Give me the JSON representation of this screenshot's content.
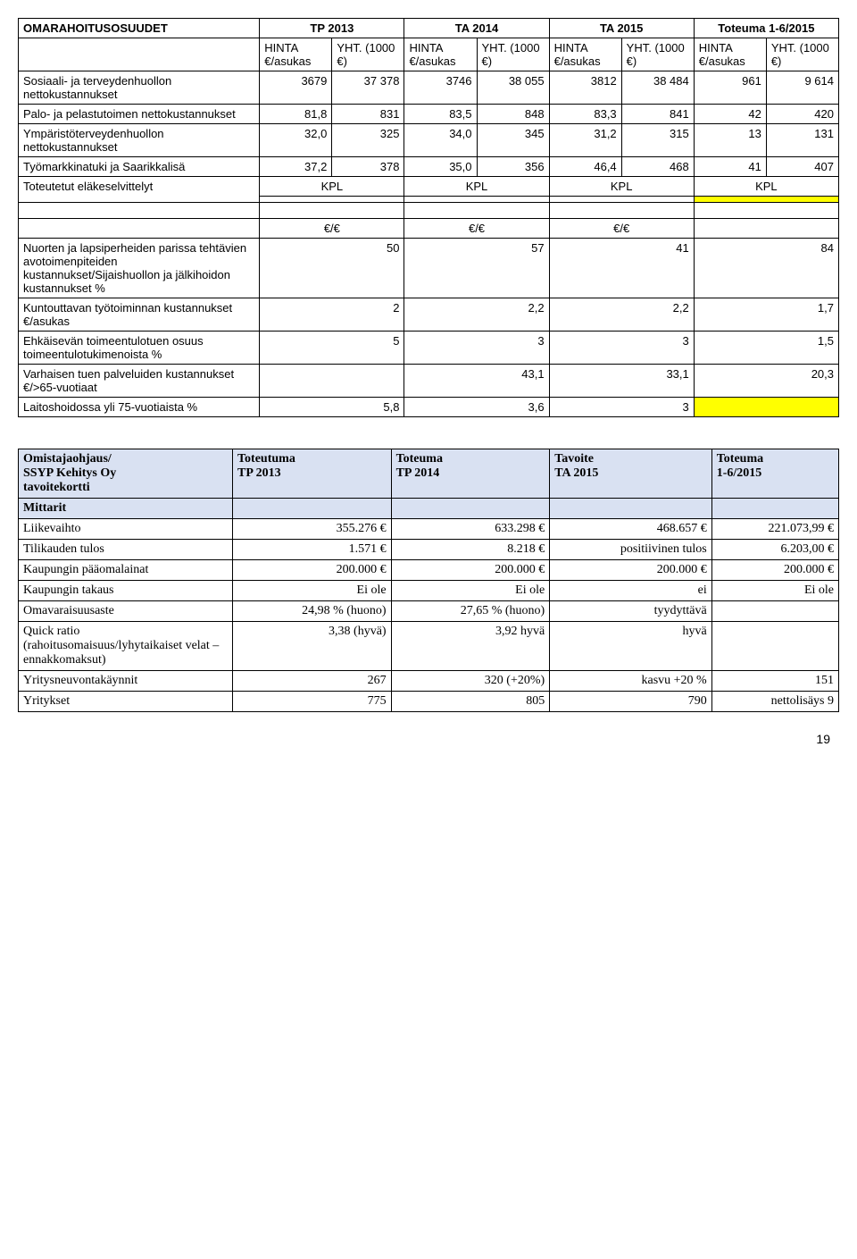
{
  "table1": {
    "title": "OMARAHOITUSOSUUDET",
    "periods": [
      "TP 2013",
      "TA 2014",
      "TA 2015",
      "Toteuma 1-6/2015"
    ],
    "subheaders": {
      "h1": "HINTA €/asukas",
      "h2": "YHT. (1000 €)",
      "h3": "HINTA €/asukas",
      "h4": "YHT. (1000 €)",
      "h5": "HINTA €/asukas",
      "h6": "YHT. (1000 €)",
      "h7": "HINTA €/asukas",
      "h8": "YHT. (1000 €)"
    },
    "rows": [
      {
        "label": "Sosiaali- ja terveydenhuollon nettokustannukset",
        "v": [
          "3679",
          "37 378",
          "3746",
          "38 055",
          "3812",
          "38 484",
          "961",
          "9 614"
        ]
      },
      {
        "label": "Palo- ja pelastutoimen nettokustannukset",
        "v": [
          "81,8",
          "831",
          "83,5",
          "848",
          "83,3",
          "841",
          "42",
          "420"
        ]
      },
      {
        "label": "Ympäristöterveydenhuollon nettokustannukset",
        "v": [
          "32,0",
          "325",
          "34,0",
          "345",
          "31,2",
          "315",
          "13",
          "131"
        ]
      },
      {
        "label": "Työmarkkinatuki ja Saarikkalisä",
        "v": [
          "37,2",
          "378",
          "35,0",
          "356",
          "46,4",
          "468",
          "41",
          "407"
        ]
      }
    ],
    "kpl_row": {
      "label": "Toteutetut eläkeselvittelyt",
      "kpl": "KPL"
    },
    "euro_header": "€/€",
    "rows2": [
      {
        "label": "Nuorten ja lapsiperheiden parissa tehtävien avotoimenpiteiden kustannukset/Sijaishuollon ja jälkihoidon kustannukset %",
        "v": [
          "50",
          "57",
          "41",
          "84"
        ]
      },
      {
        "label": "Kuntouttavan työtoiminnan kustannukset €/asukas",
        "v": [
          "2",
          "2,2",
          "2,2",
          "1,7"
        ]
      },
      {
        "label": "Ehkäisevän toimeentulotuen osuus toimeentulotukimenoista %",
        "v": [
          "5",
          "3",
          "3",
          "1,5"
        ]
      },
      {
        "label": "Varhaisen tuen palveluiden kustannukset €/>65-vuotiaat",
        "v": [
          "",
          "43,1",
          "33,1",
          "20,3"
        ]
      },
      {
        "label": "Laitoshoidossa yli 75-vuotiaista %",
        "v": [
          "5,8",
          "3,6",
          "3",
          ""
        ],
        "yellowLast": true
      }
    ]
  },
  "table2": {
    "header": {
      "c1a": "Omistajaohjaus/",
      "c1b": "SSYP Kehitys Oy",
      "c1c": "tavoitekortti",
      "c2a": "Toteutuma",
      "c2b": "TP 2013",
      "c3a": "Toteuma",
      "c3b": "TP 2014",
      "c4a": "Tavoite",
      "c4b": "TA 2015",
      "c5a": "Toteuma",
      "c5b": "1-6/2015"
    },
    "mittarit": "Mittarit",
    "rows": [
      {
        "label": "Liikevaihto",
        "v": [
          "355.276 €",
          "633.298 €",
          "468.657 €",
          "221.073,99 €"
        ]
      },
      {
        "label": "Tilikauden tulos",
        "v": [
          "1.571 €",
          "8.218 €",
          "positiivinen tulos",
          "6.203,00 €"
        ]
      },
      {
        "label": "Kaupungin pääomalainat",
        "v": [
          "200.000 €",
          "200.000 €",
          "200.000 €",
          "200.000 €"
        ]
      },
      {
        "label": "Kaupungin takaus",
        "v": [
          "Ei ole",
          "Ei ole",
          "ei",
          "Ei ole"
        ]
      },
      {
        "label": "Omavaraisuusaste",
        "v": [
          "24,98 % (huono)",
          "27,65 % (huono)",
          "tyydyttävä",
          ""
        ]
      },
      {
        "label": "Quick ratio (rahoitusomaisuus/lyhytaikaiset velat – ennakkomaksut)",
        "v": [
          "3,38 (hyvä)",
          "3,92 hyvä",
          "hyvä",
          ""
        ]
      },
      {
        "label": "Yritysneuvontakäynnit",
        "v": [
          "267",
          "320 (+20%)",
          "kasvu +20 %",
          "151"
        ]
      },
      {
        "label": "Yritykset",
        "v": [
          "775",
          "805",
          "790",
          "nettolisäys 9"
        ]
      }
    ]
  },
  "page_number": "19"
}
